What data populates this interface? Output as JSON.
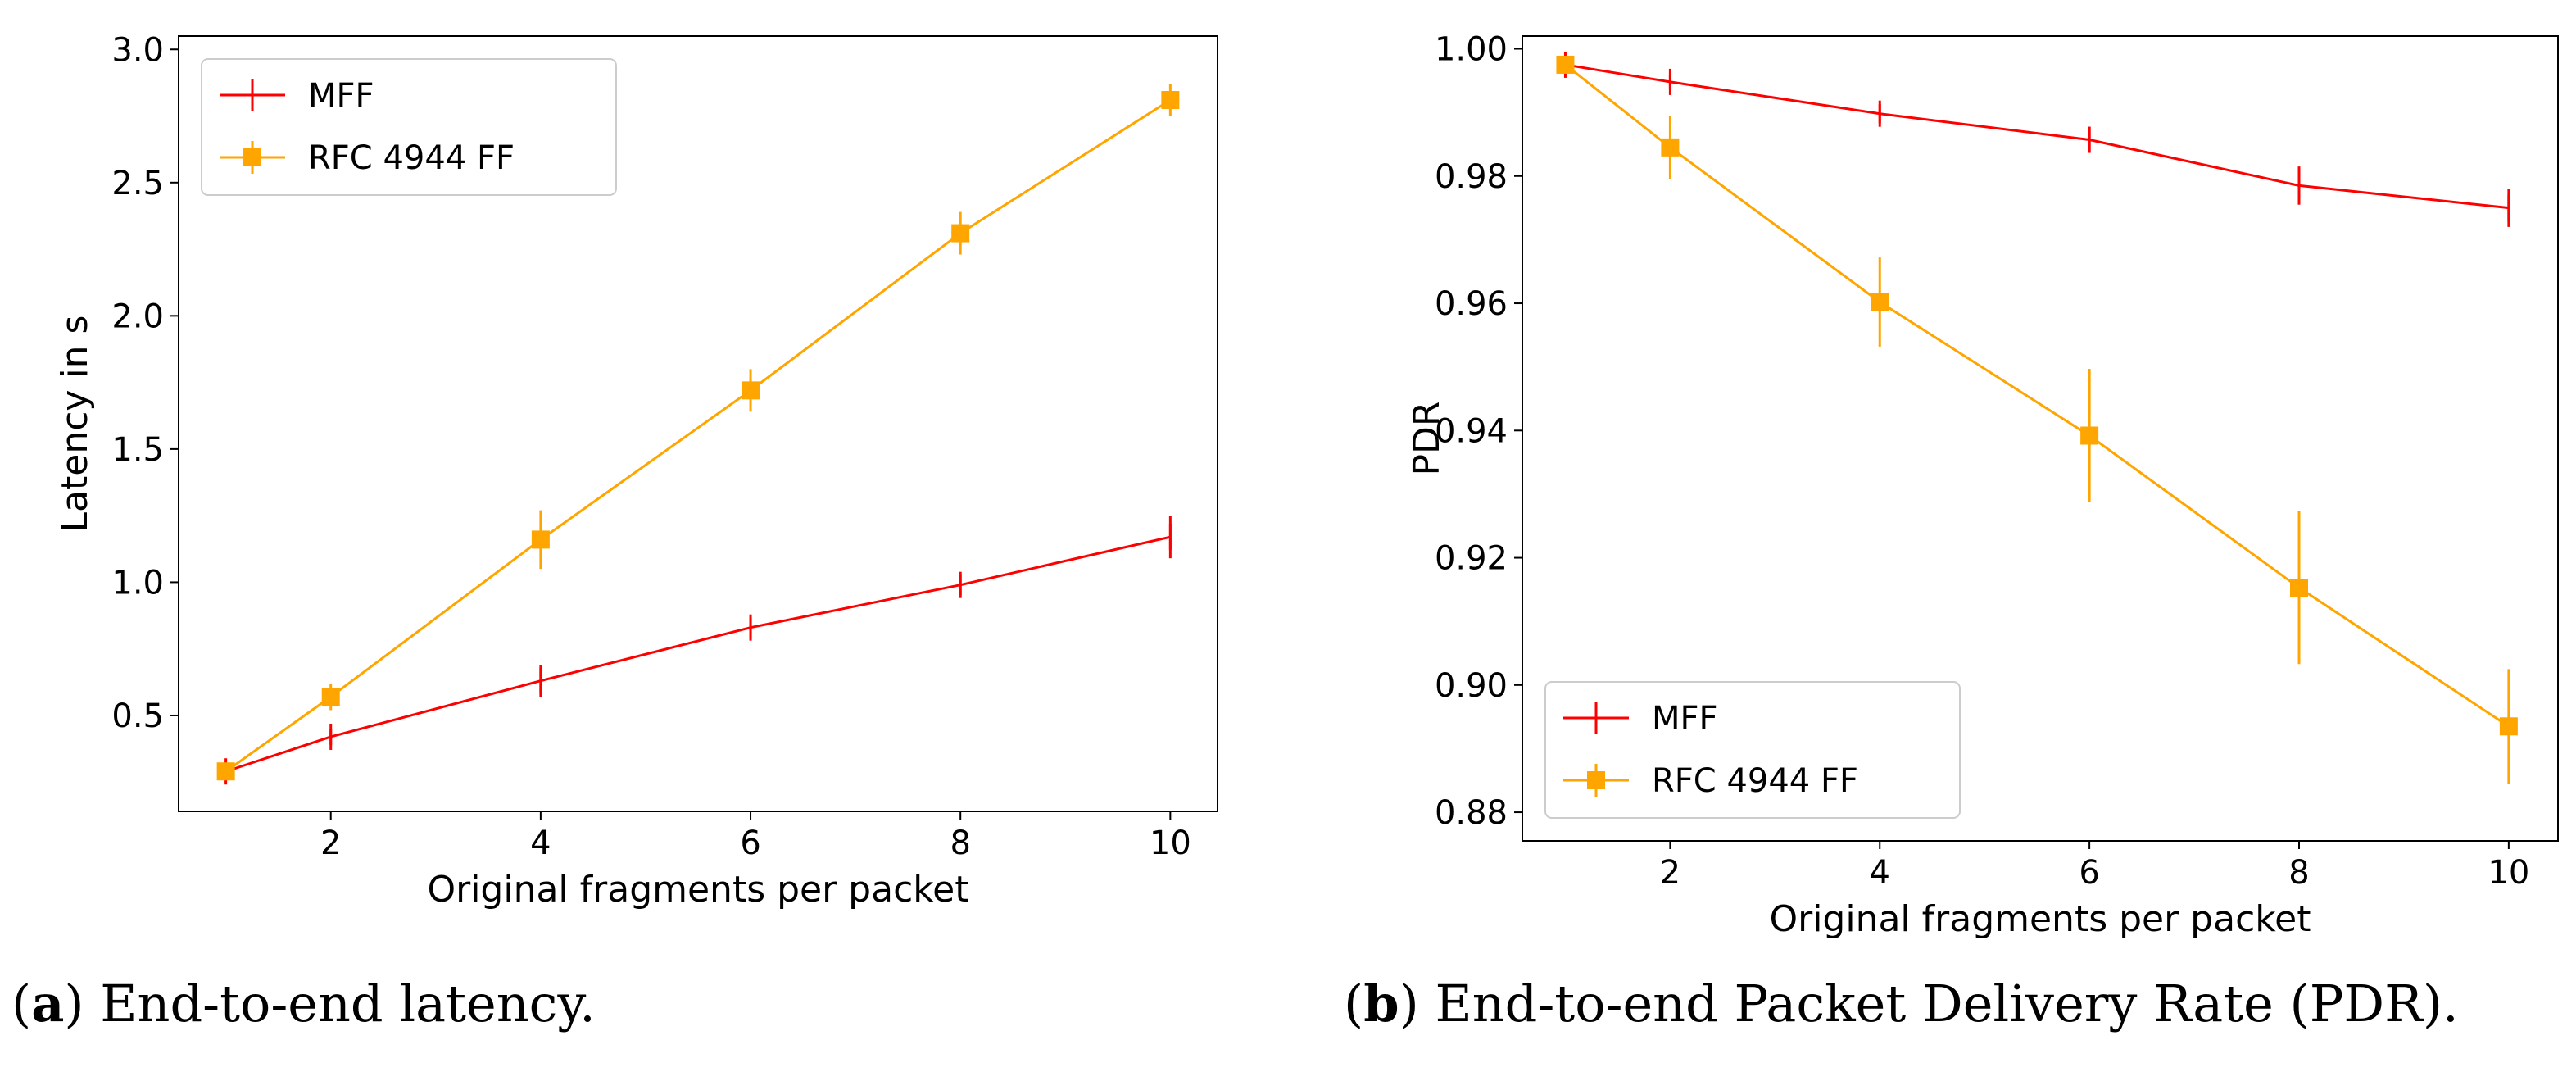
{
  "chart_data": [
    {
      "type": "line",
      "caption": [
        "(",
        "a",
        ") End-to-end latency."
      ],
      "x_label": "Original fragments per packet",
      "y_label": "Latency in s",
      "x": [
        1,
        2,
        4,
        6,
        8,
        10
      ],
      "xlim": [
        0.55,
        10.45
      ],
      "xticks": [
        2,
        4,
        6,
        8,
        10
      ],
      "ylim": [
        0.14,
        3.05
      ],
      "yticks": [
        0.5,
        {
          "value": 1.0,
          "label": "1.0"
        },
        1.5,
        {
          "value": 2.0,
          "label": "2.0"
        },
        2.5,
        {
          "value": 3.0,
          "label": "3.0"
        }
      ],
      "legend": "upper left",
      "series": [
        {
          "name": "MFF",
          "color": "#ff0000",
          "marker": "|",
          "values": [
            0.29,
            0.42,
            0.63,
            0.83,
            0.99,
            1.17
          ],
          "errors": [
            0.02,
            0.03,
            0.06,
            0.04,
            0.04,
            0.08
          ]
        },
        {
          "name": "RFC 4944 FF",
          "color": "#ffa500",
          "marker": "s",
          "values": [
            0.29,
            0.57,
            1.16,
            1.72,
            2.31,
            2.81
          ],
          "errors": [
            0.02,
            0.05,
            0.11,
            0.08,
            0.08,
            0.06
          ]
        }
      ]
    },
    {
      "type": "line",
      "caption": [
        "(",
        "b",
        ") End-to-end Packet Delivery Rate (PDR)."
      ],
      "x_label": "Original fragments per packet",
      "y_label": "PDR",
      "x": [
        1,
        2,
        4,
        6,
        8,
        10
      ],
      "xlim": [
        0.59,
        10.47
      ],
      "xticks": [
        2,
        4,
        6,
        8,
        10
      ],
      "ylim": [
        0.8755,
        1.002
      ],
      "yticks": [
        {
          "value": 0.88,
          "label": "0.88"
        },
        {
          "value": 0.9,
          "label": "0.90"
        },
        {
          "value": 0.92,
          "label": "0.92"
        },
        {
          "value": 0.94,
          "label": "0.94"
        },
        {
          "value": 0.96,
          "label": "0.96"
        },
        {
          "value": 0.98,
          "label": "0.98"
        },
        {
          "value": 1.0,
          "label": "1.00"
        }
      ],
      "legend": "lower left",
      "series": [
        {
          "name": "MFF",
          "color": "#ff0000",
          "marker": "|",
          "values": [
            0.9975,
            0.9948,
            0.9898,
            0.9857,
            0.9785,
            0.975
          ],
          "errors": [
            0.0005,
            0.001,
            0.0015,
            0.002,
            0.003,
            0.003
          ]
        },
        {
          "name": "RFC 4944 FF",
          "color": "#ffa500",
          "marker": "s",
          "values": [
            0.9975,
            0.9845,
            0.9602,
            0.9392,
            0.9153,
            0.8935
          ],
          "errors": [
            0.0005,
            0.005,
            0.007,
            0.0105,
            0.012,
            0.009
          ]
        }
      ]
    }
  ]
}
